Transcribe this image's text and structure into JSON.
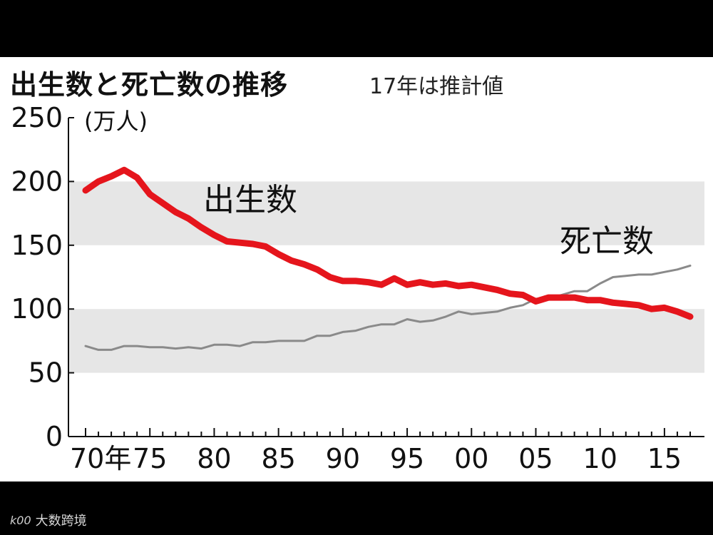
{
  "header": {
    "title": "出生数と死亡数の推移",
    "subtitle": "17年は推計値"
  },
  "watermark": {
    "logo_text": "k00",
    "text": "大数跨境"
  },
  "colors": {
    "birth": "#e5151c",
    "death": "#8a8a8a",
    "band": "#e6e6e6",
    "background": "#000000"
  },
  "chart_data": {
    "type": "line",
    "title": "出生数と死亡数の推移",
    "subtitle": "17年は推計値",
    "unit": "(万人)",
    "xlabel": "",
    "ylabel": "",
    "ylim": [
      0,
      250
    ],
    "yticks": [
      0,
      50,
      100,
      150,
      200,
      250
    ],
    "xtick_labels": [
      "70年",
      "75",
      "80",
      "85",
      "90",
      "95",
      "00",
      "05",
      "10",
      "15"
    ],
    "xtick_years": [
      1970,
      1975,
      1980,
      1985,
      1990,
      1995,
      2000,
      2005,
      2010,
      2015
    ],
    "shaded_bands": [
      [
        50,
        100
      ],
      [
        150,
        200
      ]
    ],
    "x": [
      1970,
      1971,
      1972,
      1973,
      1974,
      1975,
      1976,
      1977,
      1978,
      1979,
      1980,
      1981,
      1982,
      1983,
      1984,
      1985,
      1986,
      1987,
      1988,
      1989,
      1990,
      1991,
      1992,
      1993,
      1994,
      1995,
      1996,
      1997,
      1998,
      1999,
      2000,
      2001,
      2002,
      2003,
      2004,
      2005,
      2006,
      2007,
      2008,
      2009,
      2010,
      2011,
      2012,
      2013,
      2014,
      2015,
      2016,
      2017
    ],
    "series": [
      {
        "name": "出生数",
        "color": "#e5151c",
        "values": [
          193,
          200,
          204,
          209,
          203,
          190,
          183,
          176,
          171,
          164,
          158,
          153,
          152,
          151,
          149,
          143,
          138,
          135,
          131,
          125,
          122,
          122,
          121,
          119,
          124,
          119,
          121,
          119,
          120,
          118,
          119,
          117,
          115,
          112,
          111,
          106,
          109,
          109,
          109,
          107,
          107,
          105,
          104,
          103,
          100,
          101,
          98,
          94
        ]
      },
      {
        "name": "死亡数",
        "color": "#8a8a8a",
        "values": [
          71,
          68,
          68,
          71,
          71,
          70,
          70,
          69,
          70,
          69,
          72,
          72,
          71,
          74,
          74,
          75,
          75,
          75,
          79,
          79,
          82,
          83,
          86,
          88,
          88,
          92,
          90,
          91,
          94,
          98,
          96,
          97,
          98,
          101,
          103,
          108,
          108,
          111,
          114,
          114,
          120,
          125,
          126,
          127,
          127,
          129,
          131,
          134
        ]
      }
    ]
  }
}
